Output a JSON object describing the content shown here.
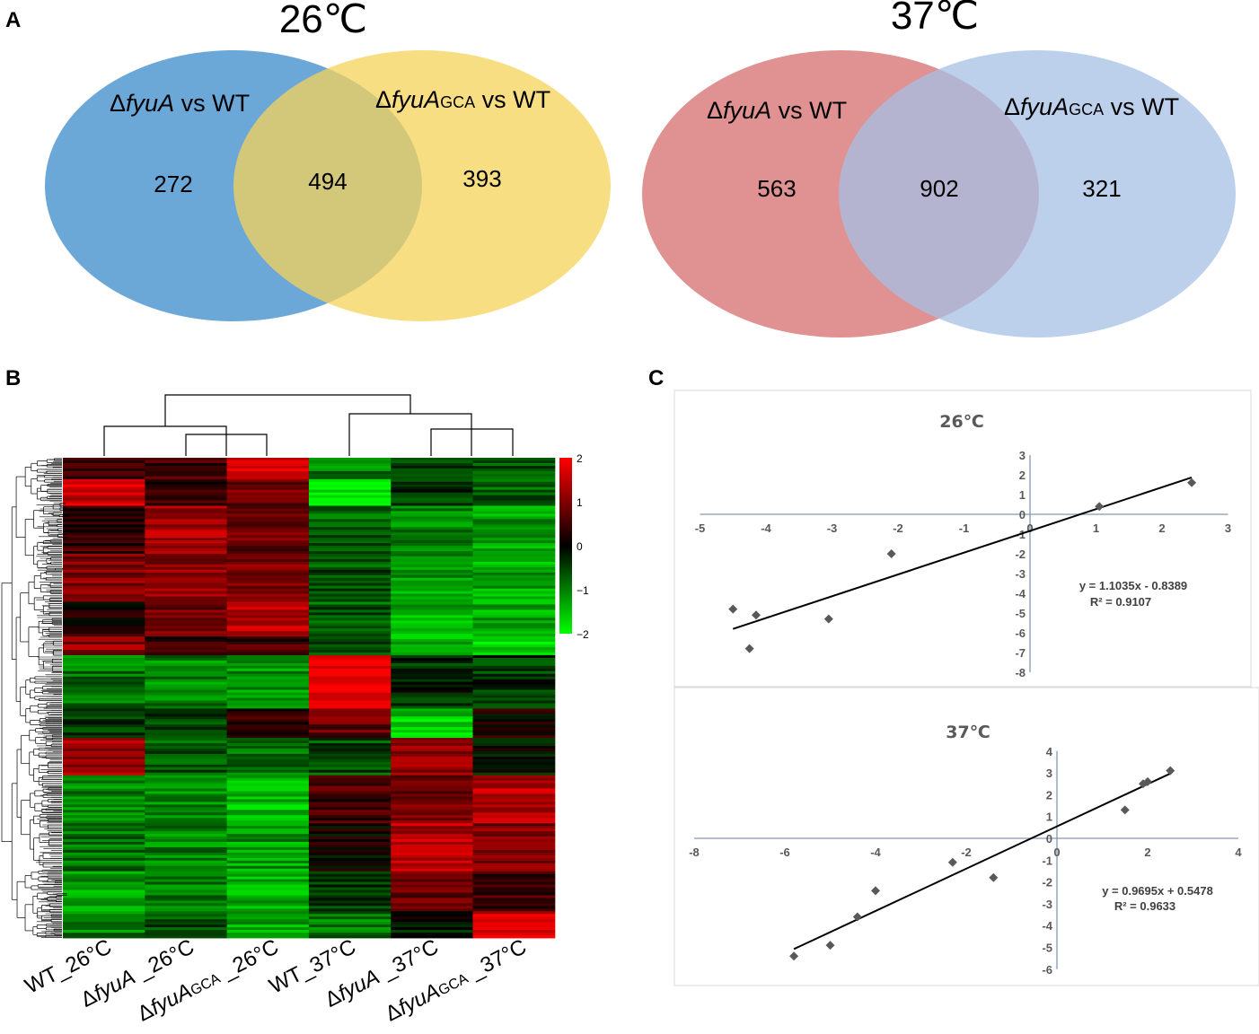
{
  "panels": {
    "A": "A",
    "B": "B",
    "C": "C"
  },
  "venn": [
    {
      "title": "26℃",
      "left_label": {
        "prefix": "Δ",
        "italic": "fyuA",
        "suffix": " vs WT"
      },
      "right_label": {
        "prefix": "Δ",
        "italic": "fyuA",
        "sub": "GCA",
        "suffix": " vs WT"
      },
      "left_only": "272",
      "both": "494",
      "right_only": "393",
      "left_color": "#5b9fd4",
      "right_color": "#f5d35a"
    },
    {
      "title": "37℃",
      "left_label": {
        "prefix": "Δ",
        "italic": "fyuA",
        "suffix": " vs WT"
      },
      "right_label": {
        "prefix": "Δ",
        "italic": "fyuA",
        "sub": "GCA",
        "suffix": " vs WT"
      },
      "left_only": "563",
      "both": "902",
      "right_only": "321",
      "left_color": "#dd8585",
      "right_color": "#a5c0e6"
    }
  ],
  "heatmap": {
    "columns": [
      {
        "pre": "WT_26°C",
        "italic": "",
        "sub": "",
        "post": ""
      },
      {
        "pre": "Δ",
        "italic": "fyuA",
        "sub": "",
        "post": " _26°C"
      },
      {
        "pre": "Δ",
        "italic": "fyuA",
        "sub": "GCA",
        "post": " _26°C"
      },
      {
        "pre": "WT_37°C",
        "italic": "",
        "sub": "",
        "post": ""
      },
      {
        "pre": "Δ",
        "italic": "fyuA",
        "sub": "",
        "post": " _37°C"
      },
      {
        "pre": "Δ",
        "italic": "fyuA",
        "sub": "GCA",
        "post": " _37°C"
      }
    ],
    "colorbar": {
      "ticks": [
        "2",
        "1",
        "0",
        "−1",
        "−2"
      ],
      "high": "#ff0000",
      "mid": "#000000",
      "low": "#00ff00"
    }
  },
  "chart_data": [
    {
      "type": "scatter",
      "title": "26℃",
      "xlim": [
        -5,
        3
      ],
      "ylim": [
        -8,
        3
      ],
      "xticks": [
        -5,
        -4,
        -3,
        -2,
        -1,
        0,
        1,
        2,
        3
      ],
      "yticks": [
        3,
        2,
        1,
        0,
        -1,
        -2,
        -3,
        -4,
        -5,
        -6,
        -7,
        -8
      ],
      "points": [
        [
          -4.5,
          -4.8
        ],
        [
          -4.15,
          -5.1
        ],
        [
          -4.25,
          -6.8
        ],
        [
          -3.05,
          -5.3
        ],
        [
          -2.1,
          -2.0
        ],
        [
          1.05,
          0.4
        ],
        [
          2.45,
          1.6
        ]
      ],
      "trendline": {
        "slope": 1.1035,
        "intercept": -0.8389,
        "x_range": [
          -4.5,
          2.45
        ]
      },
      "equation": "y = 1.1035x - 0.8389",
      "r2": "R² = 0.9107"
    },
    {
      "type": "scatter",
      "title": "37℃",
      "xlim": [
        -8,
        4
      ],
      "ylim": [
        -6,
        4
      ],
      "xticks": [
        -8,
        -6,
        -4,
        -2,
        0,
        2,
        4
      ],
      "yticks": [
        4,
        3,
        2,
        1,
        0,
        -1,
        -2,
        -3,
        -4,
        -5,
        -6
      ],
      "points": [
        [
          -5.8,
          -5.4
        ],
        [
          -5.0,
          -4.9
        ],
        [
          -4.4,
          -3.6
        ],
        [
          -4.0,
          -2.4
        ],
        [
          -2.3,
          -1.1
        ],
        [
          -1.4,
          -1.8
        ],
        [
          1.5,
          1.3
        ],
        [
          1.9,
          2.5
        ],
        [
          2.0,
          2.6
        ],
        [
          2.5,
          3.1
        ]
      ],
      "trendline": {
        "slope": 0.9695,
        "intercept": 0.5478,
        "x_range": [
          -5.8,
          2.5
        ]
      },
      "equation": "y = 0.9695x + 0.5478",
      "r2": "R² = 0.9633"
    }
  ]
}
